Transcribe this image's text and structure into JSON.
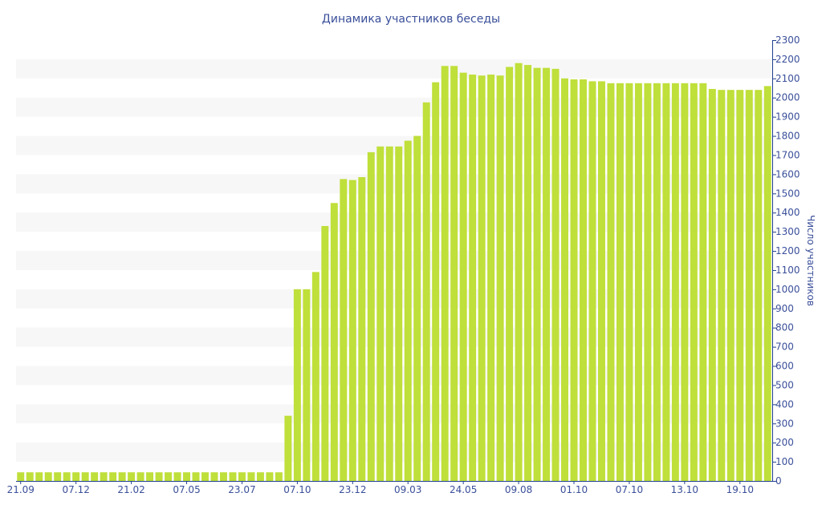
{
  "chart_data": {
    "type": "bar",
    "title": "Динамика участников беседы",
    "ylabel": "Число участников",
    "xlabel": "",
    "ylim": [
      0,
      2300
    ],
    "yticks": [
      0,
      100,
      200,
      300,
      400,
      500,
      600,
      700,
      800,
      900,
      1000,
      1100,
      1200,
      1300,
      1400,
      1500,
      1600,
      1700,
      1800,
      1900,
      2000,
      2100,
      2200,
      2300
    ],
    "xtick_labels": [
      {
        "index": 0,
        "label": "21.09"
      },
      {
        "index": 6,
        "label": "07.12"
      },
      {
        "index": 12,
        "label": "21.02"
      },
      {
        "index": 18,
        "label": "07.05"
      },
      {
        "index": 24,
        "label": "23.07"
      },
      {
        "index": 30,
        "label": "07.10"
      },
      {
        "index": 36,
        "label": "23.12"
      },
      {
        "index": 42,
        "label": "09.03"
      },
      {
        "index": 48,
        "label": "24.05"
      },
      {
        "index": 54,
        "label": "09.08"
      },
      {
        "index": 60,
        "label": "01.10"
      },
      {
        "index": 66,
        "label": "07.10"
      },
      {
        "index": 72,
        "label": "13.10"
      },
      {
        "index": 78,
        "label": "19.10"
      }
    ],
    "values": [
      45,
      45,
      45,
      45,
      45,
      45,
      45,
      45,
      45,
      45,
      45,
      45,
      45,
      45,
      45,
      45,
      45,
      45,
      45,
      45,
      45,
      45,
      45,
      45,
      45,
      45,
      45,
      45,
      45,
      340,
      1000,
      1000,
      1090,
      1330,
      1450,
      1575,
      1570,
      1585,
      1715,
      1745,
      1745,
      1745,
      1775,
      1800,
      1975,
      2080,
      2165,
      2165,
      2130,
      2120,
      2115,
      2120,
      2115,
      2160,
      2180,
      2170,
      2155,
      2155,
      2150,
      2100,
      2095,
      2095,
      2085,
      2085,
      2075,
      2075,
      2075,
      2075,
      2075,
      2075,
      2075,
      2075,
      2075,
      2075,
      2075,
      2045,
      2040,
      2040,
      2040,
      2040,
      2040,
      2060
    ],
    "grid": "alternating-horizontal-bands",
    "colors": {
      "bar": "#bfdf3a",
      "band": "#f7f7f7",
      "axis": "#1f3f8f",
      "text": "#3a4f9a",
      "title": "#3a4f9a"
    }
  }
}
